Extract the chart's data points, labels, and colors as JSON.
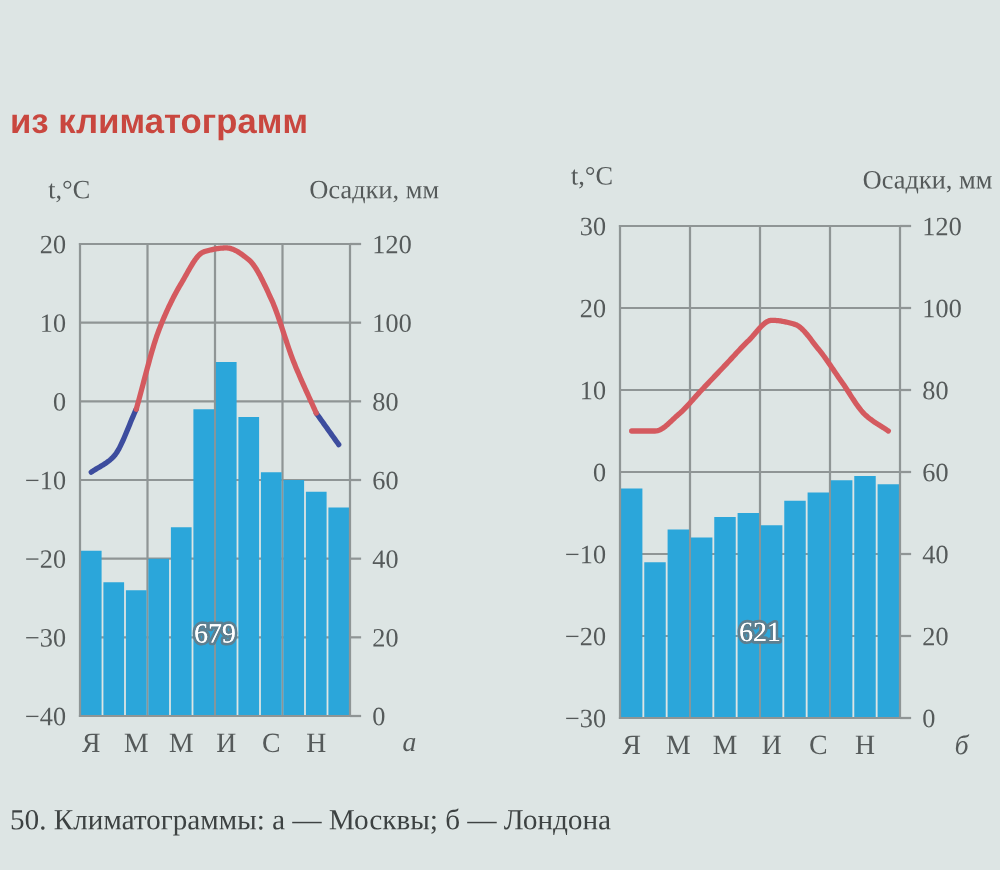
{
  "chart_data": [
    {
      "type": "bar",
      "title": "из климатограмм",
      "ylabel": "t,°C",
      "y2label": "Осадки, мм",
      "categories": [
        "Я",
        null,
        "М",
        null,
        "М",
        null,
        "И",
        null,
        "С",
        null,
        "Н",
        null
      ],
      "ylim": [
        -40,
        20
      ],
      "yticks": [
        {
          "value": -40,
          "label": "−40"
        },
        {
          "value": -30,
          "label": "−30"
        },
        {
          "value": -20,
          "label": "−20"
        },
        {
          "value": -10,
          "label": "−10"
        },
        0,
        10,
        20
      ],
      "y2lim": [
        0,
        120
      ],
      "y2ticks": [
        0,
        20,
        40,
        60,
        80,
        100,
        120
      ],
      "grid": true,
      "series": [
        {
          "axis": "y2",
          "color": "#2ba6da",
          "values": [
            42,
            34,
            32,
            40,
            48,
            78,
            90,
            76,
            62,
            60,
            57,
            53
          ]
        },
        {
          "type": "line",
          "color": "#3d4d9e",
          "values": [
            -9,
            -7,
            -1,
            null,
            null,
            null,
            null,
            null,
            null,
            null,
            -1.5,
            -5.5
          ]
        },
        {
          "type": "line",
          "color": "#d45a5f",
          "values": [
            null,
            null,
            -1,
            9,
            15,
            19,
            19.5,
            18,
            13,
            5,
            -1.5,
            null
          ]
        }
      ],
      "annotations": [
        "679",
        "а",
        "50. Климатограммы: а — Москвы; б — Лондона"
      ]
    },
    {
      "type": "bar",
      "ylabel": "t,°C",
      "y2label": "Осадки, мм",
      "categories": [
        "Я",
        null,
        "М",
        null,
        "М",
        null,
        "И",
        null,
        "С",
        null,
        "Н",
        null
      ],
      "ylim": [
        -30,
        30
      ],
      "yticks": [
        {
          "value": -30,
          "label": "−30"
        },
        {
          "value": -20,
          "label": "−20"
        },
        {
          "value": -10,
          "label": "−10"
        },
        0,
        10,
        20,
        30
      ],
      "y2lim": [
        0,
        120
      ],
      "y2ticks": [
        0,
        20,
        40,
        60,
        80,
        100,
        120
      ],
      "grid": true,
      "series": [
        {
          "axis": "y2",
          "color": "#2ba6da",
          "values": [
            56,
            38,
            46,
            44,
            49,
            50,
            47,
            53,
            55,
            58,
            59,
            57
          ]
        },
        {
          "type": "line",
          "color": "#d45a5f",
          "values": [
            5,
            5,
            7,
            10,
            13,
            16,
            18.5,
            18,
            15,
            11,
            7,
            5
          ]
        }
      ],
      "annotations": [
        "621",
        "б"
      ]
    }
  ]
}
